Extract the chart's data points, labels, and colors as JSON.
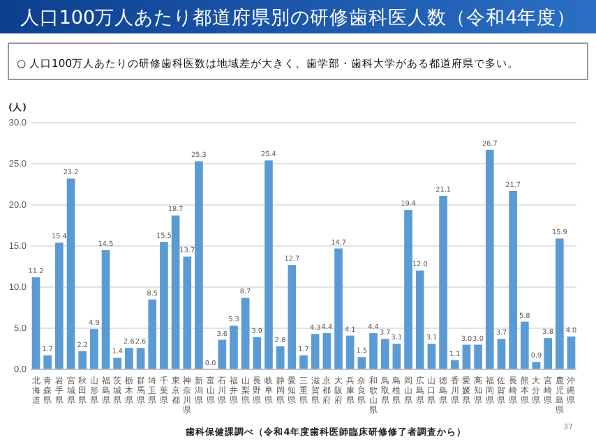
{
  "chart_data": {
    "type": "bar",
    "title": "人口100万人あたり都道府県別の研修歯科医人数（令和4年度）",
    "subtitle": "○ 人口100万人あたりの研修歯科医数は地域差が大きく、歯学部・歯科大学がある都道府県で多い。",
    "ylabel": "(人)",
    "categories": [
      "北海道",
      "青森県",
      "岩手県",
      "宮城県",
      "秋田県",
      "山形県",
      "福島県",
      "茨城県",
      "栃木県",
      "群馬県",
      "埼玉県",
      "千葉県",
      "東京都",
      "神奈川県",
      "新潟県",
      "富山県",
      "石川県",
      "福井県",
      "山梨県",
      "長野県",
      "岐阜県",
      "静岡県",
      "愛知県",
      "三重県",
      "滋賀県",
      "京都府",
      "大阪府",
      "兵庫県",
      "奈良県",
      "和歌山県",
      "鳥取県",
      "島根県",
      "岡山県",
      "広島県",
      "山口県",
      "徳島県",
      "香川県",
      "愛媛県",
      "高知県",
      "福岡県",
      "佐賀県",
      "長崎県",
      "熊本県",
      "大分県",
      "宮崎県",
      "鹿児島県",
      "沖縄県"
    ],
    "values": [
      11.2,
      1.7,
      15.4,
      23.2,
      2.2,
      4.9,
      14.5,
      1.4,
      2.6,
      2.6,
      8.5,
      15.5,
      18.7,
      13.7,
      25.3,
      0.0,
      3.6,
      5.3,
      8.7,
      3.9,
      25.4,
      2.8,
      12.7,
      1.7,
      4.3,
      4.4,
      14.7,
      4.1,
      1.5,
      4.4,
      3.7,
      3.1,
      19.4,
      12.0,
      3.1,
      21.1,
      1.1,
      3.0,
      3.0,
      26.7,
      3.7,
      21.7,
      5.8,
      0.9,
      3.8,
      15.9,
      4.0
    ],
    "color": "#5b9bd5",
    "ylim": [
      0,
      30
    ],
    "yticks": [
      {
        "value": 0,
        "label": "0.0"
      },
      {
        "value": 5,
        "label": "5.0"
      },
      {
        "value": 10,
        "label": "10.0"
      },
      {
        "value": 15,
        "label": "15.0"
      },
      {
        "value": 20,
        "label": "20.0"
      },
      {
        "value": 25,
        "label": "25.0"
      },
      {
        "value": 30,
        "label": "30.0"
      }
    ],
    "grid": "y",
    "value_labels": [
      "11.2",
      "1.7",
      "15.4",
      "23.2",
      "2.2",
      "4.9",
      "14.5",
      "1.4",
      "2.6",
      "2.6",
      "8.5",
      "15.5",
      "18.7",
      "13.7",
      "25.3",
      "0.0",
      "3.6",
      "5.3",
      "8.7",
      "3.9",
      "25.4",
      "2.8",
      "12.7",
      "1.7",
      "4.3",
      "4.4",
      "14.7",
      "4.1",
      "1.5",
      "4.4",
      "3.7",
      "3.1",
      "19.4",
      "12.0",
      "3.1",
      "21.1",
      "1.1",
      "3.0",
      "3.0",
      "26.7",
      "3.7",
      "21.7",
      "5.8",
      "0.9",
      "3.8",
      "15.9",
      "4.0"
    ],
    "annotations": [
      "歯科保健課調べ（令和4年度歯科医師臨床研修修了者調査から）",
      "37"
    ]
  }
}
